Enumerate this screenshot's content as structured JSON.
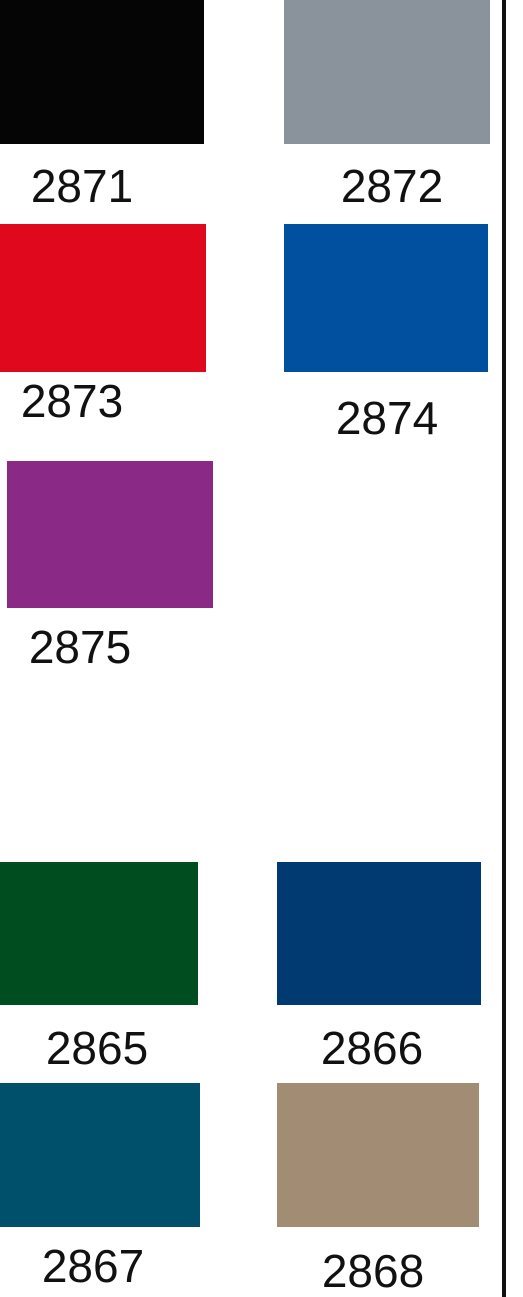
{
  "swatches": [
    {
      "label": "2871",
      "color": "#050505"
    },
    {
      "label": "2872",
      "color": "#8a939b"
    },
    {
      "label": "2873",
      "color": "#e0081c"
    },
    {
      "label": "2874",
      "color": "#0050a0"
    },
    {
      "label": "2875",
      "color": "#8b2a86"
    },
    {
      "label": "2865",
      "color": "#004d20"
    },
    {
      "label": "2866",
      "color": "#003a70"
    },
    {
      "label": "2867",
      "color": "#00506c"
    },
    {
      "label": "2868",
      "color": "#a38c74"
    }
  ]
}
